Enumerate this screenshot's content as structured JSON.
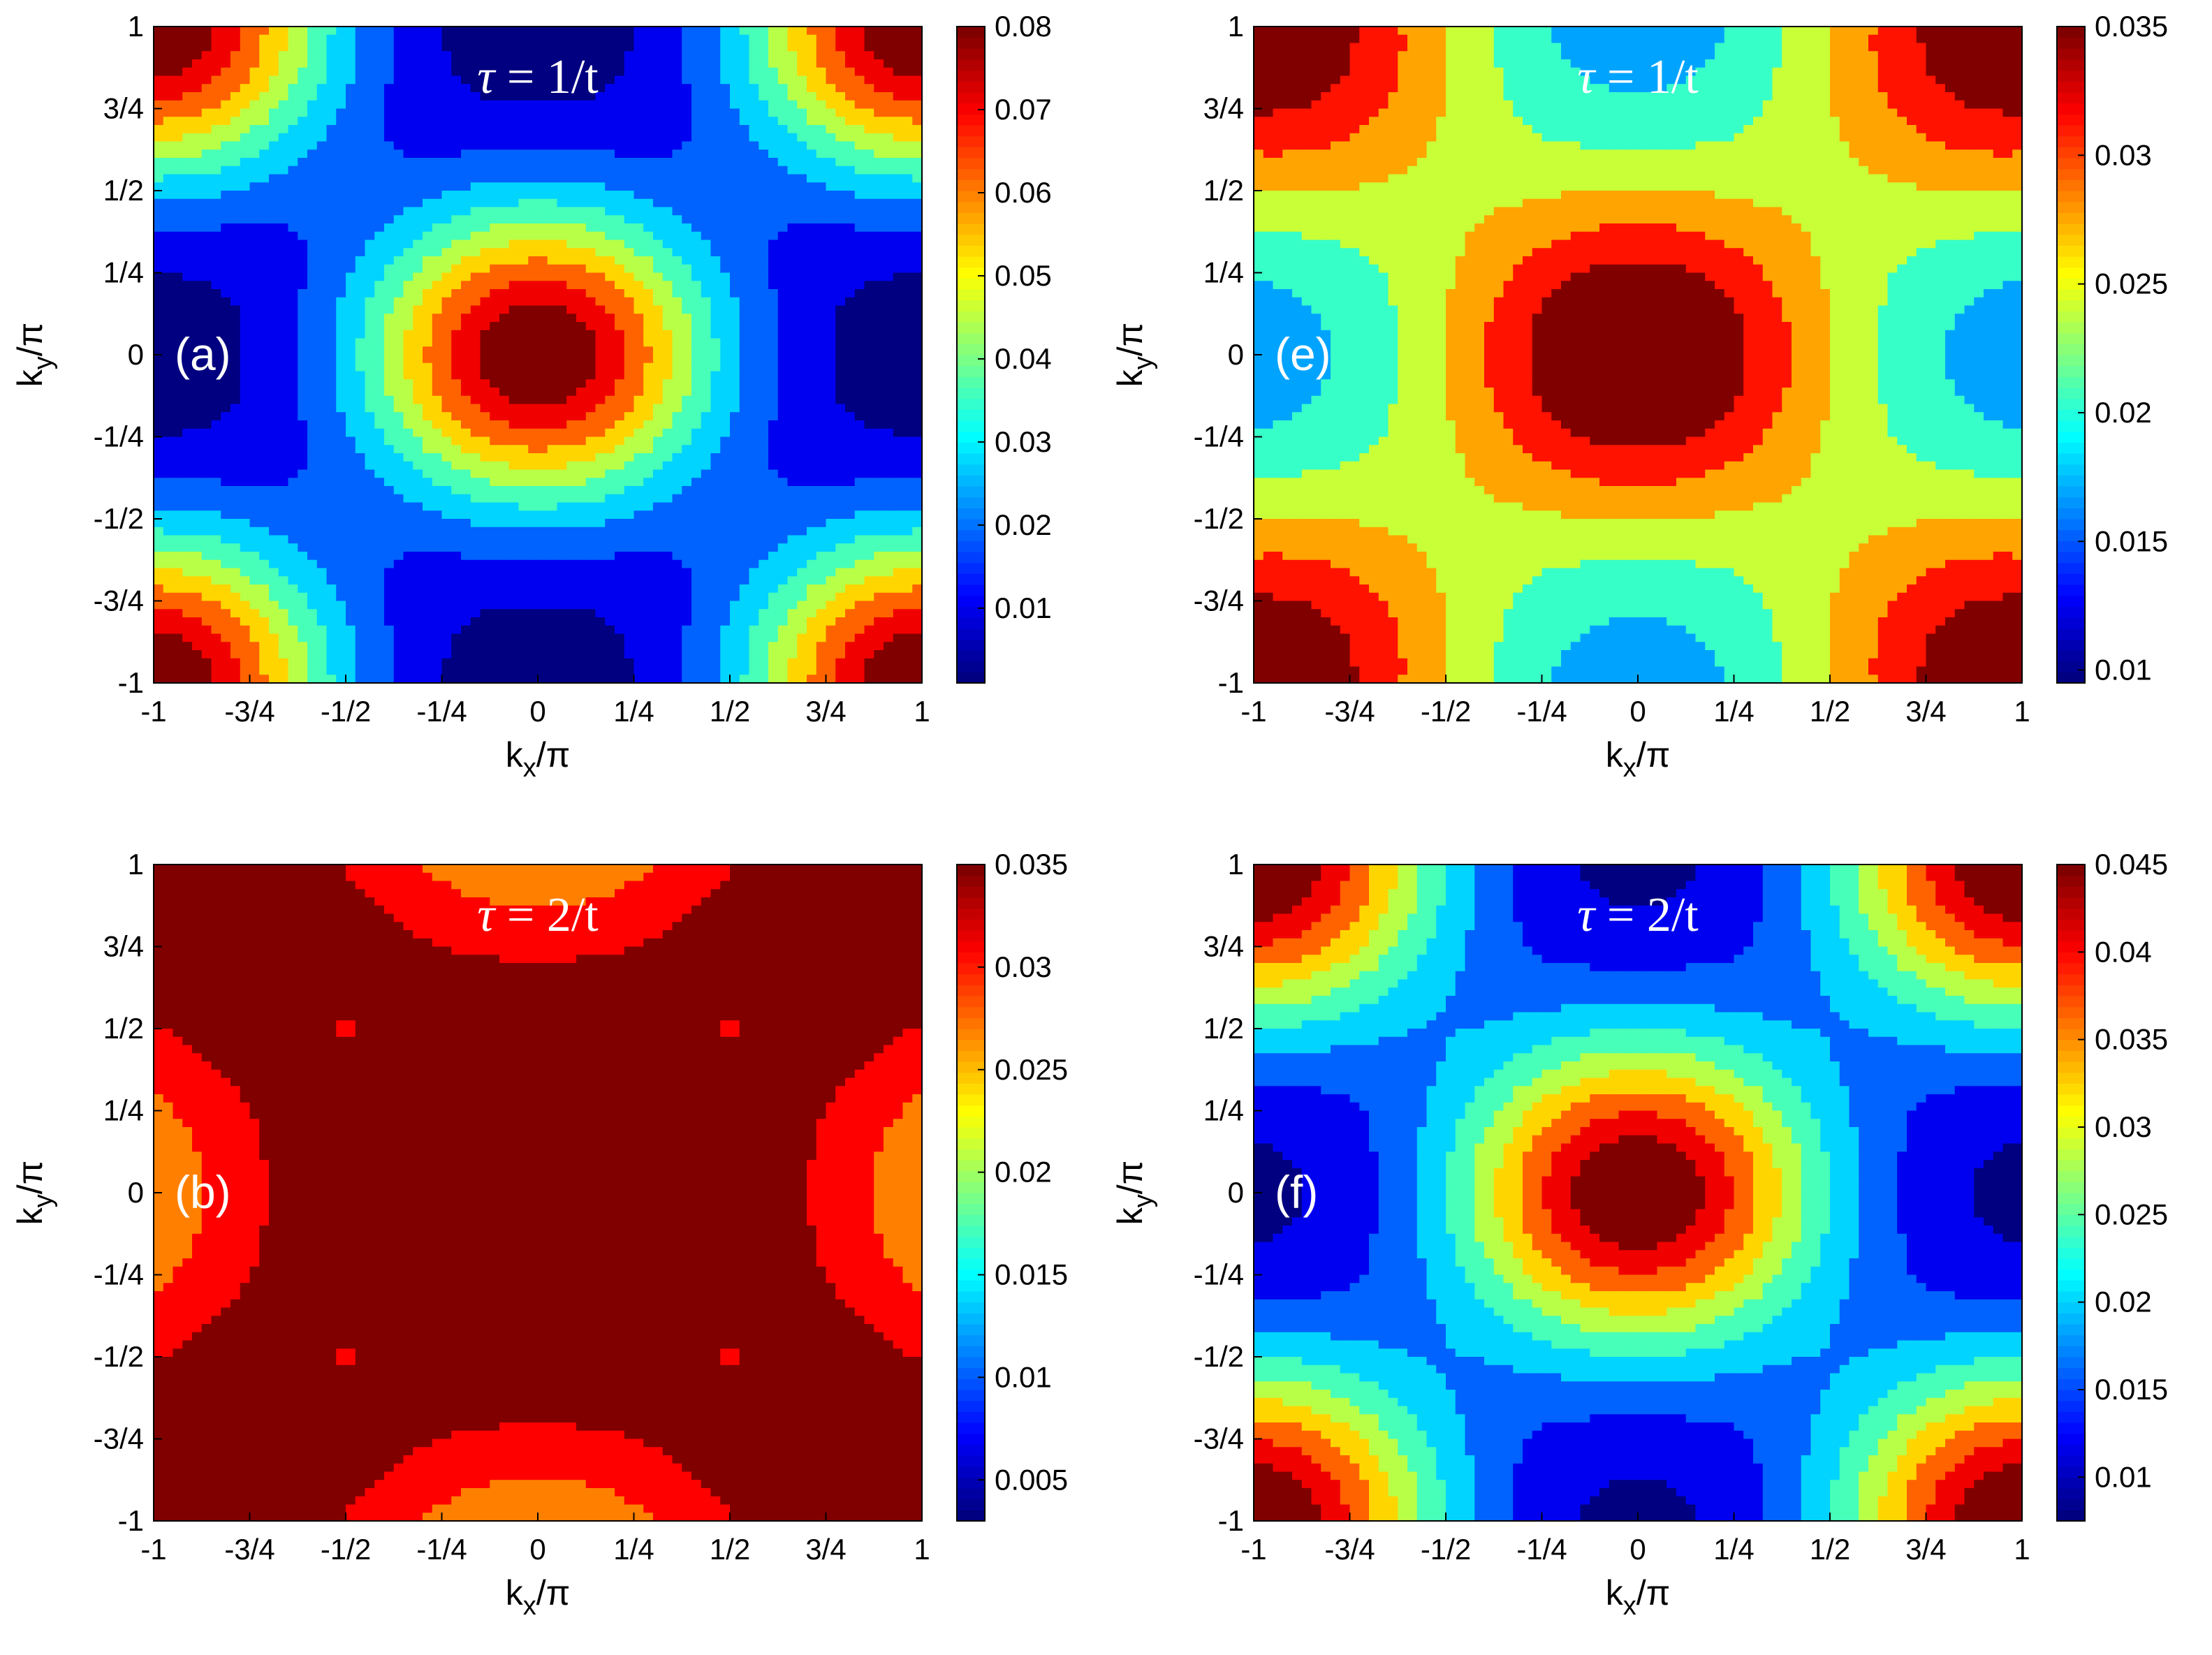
{
  "chart_data": [
    {
      "type": "heatmap",
      "id": "a",
      "label": "(a)",
      "title_symbol": "τ",
      "title_value": "= 1/t",
      "xlabel_main": "k",
      "xlabel_sub": "x",
      "xlabel_tail": "/π",
      "ylabel_main": "k",
      "ylabel_sub": "y",
      "ylabel_tail": "/π",
      "xlim": [
        -1,
        1
      ],
      "ylim": [
        -1,
        1
      ],
      "xticks": [
        "-1",
        "-3/4",
        "-1/2",
        "-1/4",
        "0",
        "1/4",
        "1/2",
        "3/4",
        "1"
      ],
      "yticks": [
        "-1",
        "-3/4",
        "-1/2",
        "-1/4",
        "0",
        "1/4",
        "1/2",
        "3/4",
        "1"
      ],
      "clim": [
        0.001,
        0.08
      ],
      "cticks": [
        "0.01",
        "0.02",
        "0.03",
        "0.04",
        "0.05",
        "0.06",
        "0.07",
        "0.08"
      ],
      "cticks_values": [
        0.01,
        0.02,
        0.03,
        0.04,
        0.05,
        0.06,
        0.07,
        0.08
      ],
      "model": {
        "center_peak": 0.08,
        "center_width": 0.34,
        "corner_peak": 0.08,
        "corner_width": 0.34,
        "corner_pow": 1.0,
        "baseline": 0.001,
        "satellites": []
      }
    },
    {
      "type": "heatmap",
      "id": "e",
      "label": "(e)",
      "title_symbol": "τ",
      "title_value": "= 1/t",
      "xlabel_main": "k",
      "xlabel_sub": "x",
      "xlabel_tail": "/π",
      "ylabel_main": "k",
      "ylabel_sub": "y",
      "ylabel_tail": "/π",
      "xlim": [
        -1,
        1
      ],
      "ylim": [
        -1,
        1
      ],
      "xticks": [
        "-1",
        "-3/4",
        "-1/2",
        "-1/4",
        "0",
        "1/4",
        "1/2",
        "3/4",
        "1"
      ],
      "yticks": [
        "-1",
        "-3/4",
        "-1/2",
        "-1/4",
        "0",
        "1/4",
        "1/2",
        "3/4",
        "1"
      ],
      "clim": [
        0.0095,
        0.035
      ],
      "cticks": [
        "0.01",
        "0.015",
        "0.02",
        "0.025",
        "0.03",
        "0.035"
      ],
      "cticks_values": [
        0.01,
        0.015,
        0.02,
        0.025,
        0.03,
        0.035
      ],
      "model": {
        "center_peak": 0.035,
        "center_width": 0.42,
        "corner_peak": 0.035,
        "corner_width": 0.48,
        "corner_pow": 1.0,
        "baseline": 0.0097,
        "satellites": []
      }
    },
    {
      "type": "heatmap",
      "id": "b",
      "label": "(b)",
      "title_symbol": "τ",
      "title_value": "= 2/t",
      "xlabel_main": "k",
      "xlabel_sub": "x",
      "xlabel_tail": "/π",
      "ylabel_main": "k",
      "ylabel_sub": "y",
      "ylabel_tail": "/π",
      "xlim": [
        -1,
        1
      ],
      "ylim": [
        -1,
        1
      ],
      "xticks": [
        "-1",
        "-3/4",
        "-1/2",
        "-1/4",
        "0",
        "1/4",
        "1/2",
        "3/4",
        "1"
      ],
      "yticks": [
        "-1",
        "-3/4",
        "-1/2",
        "-1/4",
        "0",
        "1/4",
        "1/2",
        "3/4",
        "1"
      ],
      "clim": [
        0.003,
        0.035
      ],
      "cticks": [
        "0.005",
        "0.01",
        "0.015",
        "0.02",
        "0.025",
        "0.03",
        "0.035"
      ],
      "cticks_values": [
        0.005,
        0.01,
        0.015,
        0.02,
        0.025,
        0.03,
        0.035
      ],
      "model": {
        "center_peak": 0.035,
        "center_width": 0.55,
        "corner_peak": 0.035,
        "corner_width": 0.6,
        "corner_pow": 1.0,
        "baseline": 0.003,
        "satellites": [
          {
            "x": 0.5,
            "y": 0.5,
            "amp": -0.004
          }
        ]
      }
    },
    {
      "type": "heatmap",
      "id": "f",
      "label": "(f)",
      "title_symbol": "τ",
      "title_value": "= 2/t",
      "xlabel_main": "k",
      "xlabel_sub": "x",
      "xlabel_tail": "/π",
      "ylabel_main": "k",
      "ylabel_sub": "y",
      "ylabel_tail": "/π",
      "xlim": [
        -1,
        1
      ],
      "ylim": [
        -1,
        1
      ],
      "xticks": [
        "-1",
        "-3/4",
        "-1/2",
        "-1/4",
        "0",
        "1/4",
        "1/2",
        "3/4",
        "1"
      ],
      "yticks": [
        "-1",
        "-3/4",
        "-1/2",
        "-1/4",
        "0",
        "1/4",
        "1/2",
        "3/4",
        "1"
      ],
      "clim": [
        0.0075,
        0.045
      ],
      "cticks": [
        "0.01",
        "0.015",
        "0.02",
        "0.025",
        "0.03",
        "0.035",
        "0.04",
        "0.045"
      ],
      "cticks_values": [
        0.01,
        0.015,
        0.02,
        0.025,
        0.03,
        0.035,
        0.04,
        0.045
      ],
      "model": {
        "center_peak": 0.045,
        "center_width": 0.36,
        "corner_peak": 0.045,
        "corner_width": 0.36,
        "corner_pow": 1.0,
        "baseline": 0.0078,
        "satellites": []
      }
    }
  ]
}
